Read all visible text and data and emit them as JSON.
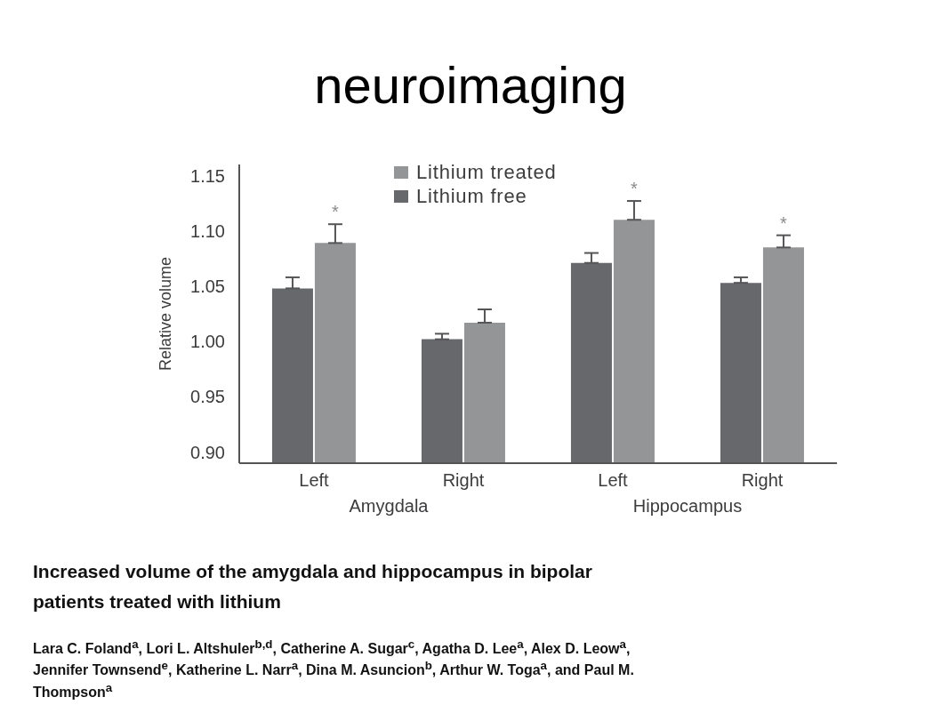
{
  "chart_data": {
    "type": "bar",
    "title": "neuroimaging",
    "ylabel": "Relative volume",
    "categories": [
      "Left",
      "Right",
      "Left",
      "Right"
    ],
    "series": [
      {
        "name": "Lithium free",
        "color": "#67686c",
        "values": [
          1.048,
          1.002,
          1.071,
          1.053
        ],
        "errors": [
          [
            1.048,
            1.058
          ],
          [
            1.002,
            1.007
          ],
          [
            1.071,
            1.08
          ],
          [
            1.053,
            1.058
          ]
        ]
      },
      {
        "name": "Lithium treated",
        "color": "#939597",
        "values": [
          1.089,
          1.017,
          1.11,
          1.085
        ],
        "errors": [
          [
            1.089,
            1.106
          ],
          [
            1.017,
            1.029
          ],
          [
            1.11,
            1.127
          ],
          [
            1.085,
            1.096
          ]
        ],
        "value_labels": [
          "*",
          null,
          "*",
          "*"
        ]
      }
    ],
    "ylim": [
      0.89,
      1.16
    ],
    "yticks": [
      {
        "value": 0.9,
        "label": "0.90"
      },
      0.95,
      {
        "value": 1.0,
        "label": "1.00"
      },
      1.05,
      {
        "value": 1.1,
        "label": "1.10"
      },
      1.15
    ],
    "legend": "top",
    "annotations": [
      "Amygdala",
      "Hippocampus",
      "Increased volume of the amygdala and hippocampus in bipolar patients treated with lithium",
      "Lara C. Foland$^{a}$, Lori L. Altshuler$^{b,d}$, Catherine A. Sugar$^{c}$, Agatha D. Lee$^{a}$, Alex D. Leow$^{a}$, Jennifer Townsend$^{e}$, Katherine L. Narr$^{a}$, Dina M. Asuncion$^{b}$, Arthur W. Toga$^{a}$, and Paul M. Thompson$^{a}$"
    ]
  }
}
